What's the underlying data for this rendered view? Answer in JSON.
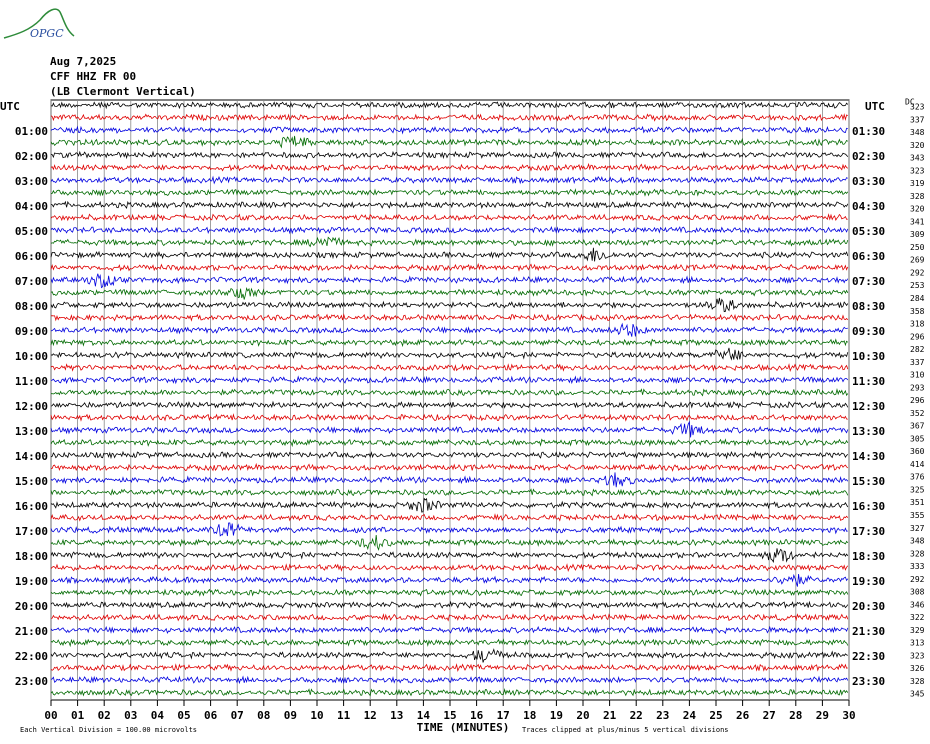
{
  "header": {
    "logo": "OPGC",
    "date": "Aug 7,2025",
    "station": "CFF HHZ FR 00",
    "location": "(LB Clermont Vertical)"
  },
  "chart_data": {
    "type": "helicorder",
    "utc_left": "UTC",
    "utc_right": "UTC",
    "left_labels": [
      "01:00",
      "02:00",
      "03:00",
      "04:00",
      "05:00",
      "06:00",
      "07:00",
      "08:00",
      "09:00",
      "10:00",
      "11:00",
      "12:00",
      "13:00",
      "14:00",
      "15:00",
      "16:00",
      "17:00",
      "18:00",
      "19:00",
      "20:00",
      "21:00",
      "22:00",
      "23:00"
    ],
    "right_labels": [
      "01:30",
      "02:30",
      "03:30",
      "04:30",
      "05:30",
      "06:30",
      "07:30",
      "08:30",
      "09:30",
      "10:30",
      "11:30",
      "12:30",
      "13:30",
      "14:30",
      "15:30",
      "16:30",
      "17:30",
      "18:30",
      "19:30",
      "20:30",
      "21:30",
      "22:30",
      "23:30"
    ],
    "dc_label": "DC",
    "dc_values": [
      323,
      337,
      348,
      320,
      343,
      323,
      319,
      328,
      320,
      341,
      309,
      250,
      269,
      292,
      253,
      284,
      358,
      318,
      296,
      282,
      337,
      310,
      293,
      296,
      352,
      367,
      305,
      360,
      414,
      376,
      325,
      351,
      355,
      327,
      348,
      328,
      333,
      292,
      308,
      346,
      322,
      329,
      313,
      323,
      326,
      328,
      345
    ],
    "xlim": [
      0,
      30
    ],
    "xticks": [
      {
        "value": 0,
        "label": "00"
      },
      {
        "value": 1,
        "label": "01"
      },
      {
        "value": 2,
        "label": "02"
      },
      {
        "value": 3,
        "label": "03"
      },
      {
        "value": 4,
        "label": "04"
      },
      {
        "value": 5,
        "label": "05"
      },
      {
        "value": 6,
        "label": "06"
      },
      {
        "value": 7,
        "label": "07"
      },
      {
        "value": 8,
        "label": "08"
      },
      {
        "value": 9,
        "label": "09"
      },
      10,
      11,
      12,
      13,
      14,
      15,
      16,
      17,
      18,
      19,
      20,
      21,
      22,
      23,
      24,
      25,
      26,
      27,
      28,
      29,
      30
    ],
    "x_label": "TIME (MINUTES)",
    "footnote_left": "Each Vertical Division =  100.00 microvolts",
    "footnote_right": "Traces clipped at plus/minus 5 vertical divisions",
    "trace_colors": [
      "#000000",
      "#e00000",
      "#0000e0",
      "#006a00"
    ],
    "grid": true
  }
}
